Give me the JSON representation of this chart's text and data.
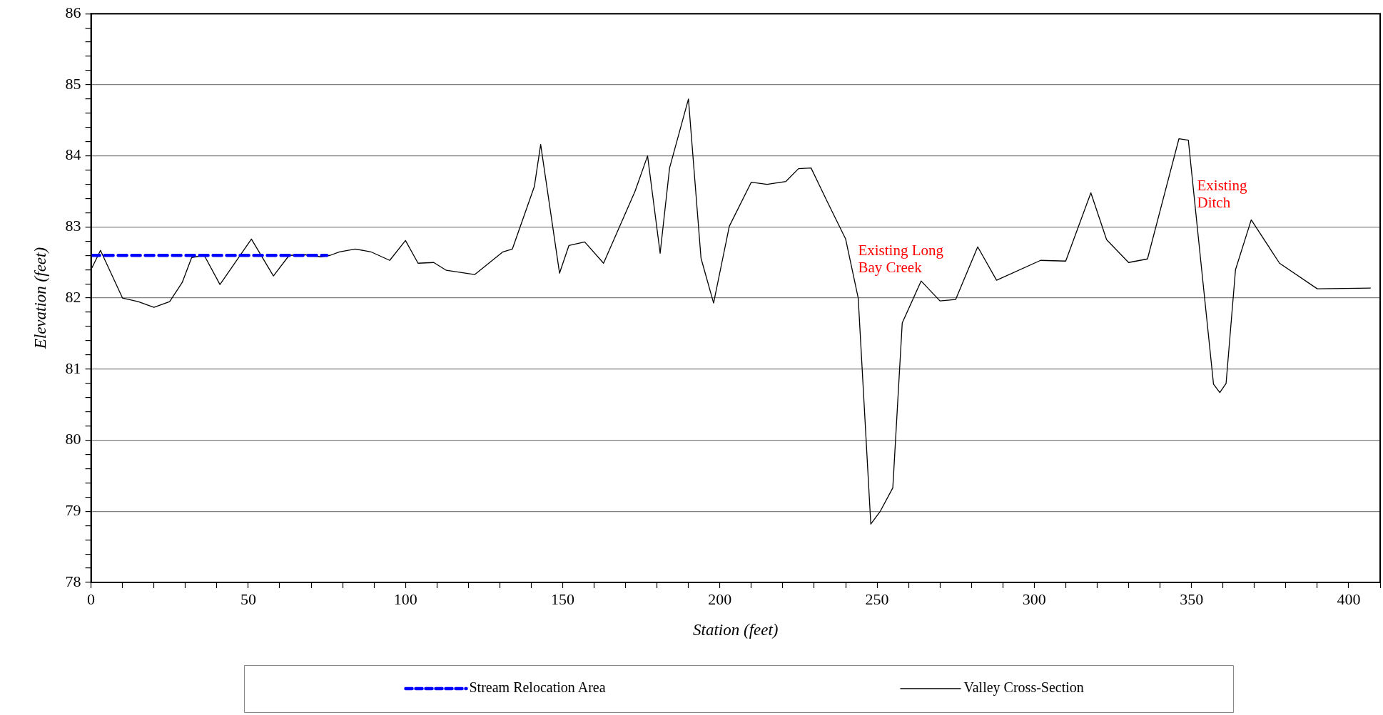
{
  "chart_data": {
    "type": "line",
    "xlabel": "Station (feet)",
    "ylabel": "Elevation (feet)",
    "xlim": [
      0,
      410
    ],
    "xticks": [
      0,
      {
        "value": 10,
        "label": null
      },
      {
        "value": 20,
        "label": null
      },
      {
        "value": 30,
        "label": null
      },
      {
        "value": 40,
        "label": null
      },
      50,
      {
        "value": 60,
        "label": null
      },
      {
        "value": 70,
        "label": null
      },
      {
        "value": 80,
        "label": null
      },
      {
        "value": 90,
        "label": null
      },
      100,
      {
        "value": 110,
        "label": null
      },
      {
        "value": 120,
        "label": null
      },
      {
        "value": 130,
        "label": null
      },
      {
        "value": 140,
        "label": null
      },
      150,
      {
        "value": 160,
        "label": null
      },
      {
        "value": 170,
        "label": null
      },
      {
        "value": 180,
        "label": null
      },
      {
        "value": 190,
        "label": null
      },
      200,
      {
        "value": 210,
        "label": null
      },
      {
        "value": 220,
        "label": null
      },
      {
        "value": 230,
        "label": null
      },
      {
        "value": 240,
        "label": null
      },
      250,
      {
        "value": 260,
        "label": null
      },
      {
        "value": 270,
        "label": null
      },
      {
        "value": 280,
        "label": null
      },
      {
        "value": 290,
        "label": null
      },
      300,
      {
        "value": 310,
        "label": null
      },
      {
        "value": 320,
        "label": null
      },
      {
        "value": 330,
        "label": null
      },
      {
        "value": 340,
        "label": null
      },
      350,
      {
        "value": 360,
        "label": null
      },
      {
        "value": 370,
        "label": null
      },
      {
        "value": 380,
        "label": null
      },
      {
        "value": 390,
        "label": null
      },
      400,
      {
        "value": 410,
        "label": null
      }
    ],
    "ylim": [
      78,
      86
    ],
    "yticks": [
      78,
      {
        "value": 78.2,
        "label": null
      },
      {
        "value": 78.4,
        "label": null
      },
      {
        "value": 78.6,
        "label": null
      },
      {
        "value": 78.8,
        "label": null
      },
      79,
      {
        "value": 79.2,
        "label": null
      },
      {
        "value": 79.4,
        "label": null
      },
      {
        "value": 79.6,
        "label": null
      },
      {
        "value": 79.8,
        "label": null
      },
      80,
      {
        "value": 80.2,
        "label": null
      },
      {
        "value": 80.4,
        "label": null
      },
      {
        "value": 80.6,
        "label": null
      },
      {
        "value": 80.8,
        "label": null
      },
      81,
      {
        "value": 81.2,
        "label": null
      },
      {
        "value": 81.4,
        "label": null
      },
      {
        "value": 81.6,
        "label": null
      },
      {
        "value": 81.8,
        "label": null
      },
      82,
      {
        "value": 82.2,
        "label": null
      },
      {
        "value": 82.4,
        "label": null
      },
      {
        "value": 82.6,
        "label": null
      },
      {
        "value": 82.8,
        "label": null
      },
      83,
      {
        "value": 83.2,
        "label": null
      },
      {
        "value": 83.4,
        "label": null
      },
      {
        "value": 83.6,
        "label": null
      },
      {
        "value": 83.8,
        "label": null
      },
      84,
      {
        "value": 84.2,
        "label": null
      },
      {
        "value": 84.4,
        "label": null
      },
      {
        "value": 84.6,
        "label": null
      },
      {
        "value": 84.8,
        "label": null
      },
      85,
      {
        "value": 85.2,
        "label": null
      },
      {
        "value": 85.4,
        "label": null
      },
      {
        "value": 85.6,
        "label": null
      },
      {
        "value": 85.8,
        "label": null
      },
      86
    ],
    "grid": "y",
    "legend": "bottom",
    "marker": "none",
    "series": [
      {
        "name": "Stream Relocation Area",
        "color": "#0000ff",
        "line_style": "dashed",
        "x": [
          0,
          75
        ],
        "values": [
          82.6,
          82.6
        ]
      },
      {
        "name": "Valley Cross-Section",
        "color": "#000000",
        "line_style": "solid",
        "x": [
          0,
          3,
          10,
          15,
          20,
          25,
          29,
          32,
          36,
          41,
          51,
          58,
          63,
          68,
          73,
          76,
          79,
          84,
          89,
          95,
          100,
          104,
          109,
          113,
          122,
          131,
          134,
          141,
          143,
          149,
          152,
          157,
          163,
          173,
          177,
          181,
          184,
          190,
          194,
          198,
          203,
          210,
          215,
          221,
          225,
          229,
          234,
          240,
          244,
          248,
          251,
          255,
          258,
          264,
          270,
          275,
          282,
          288,
          302,
          310,
          318,
          323,
          330,
          336,
          346,
          349,
          353,
          357,
          359,
          361,
          364,
          369,
          378,
          390,
          407
        ],
        "values": [
          82.4,
          82.67,
          82.0,
          81.95,
          81.87,
          81.95,
          82.22,
          82.57,
          82.6,
          82.19,
          82.83,
          82.31,
          82.6,
          82.61,
          82.58,
          82.6,
          82.65,
          82.69,
          82.65,
          82.53,
          82.81,
          82.49,
          82.5,
          82.39,
          82.33,
          82.65,
          82.69,
          83.57,
          84.16,
          82.35,
          82.74,
          82.79,
          82.49,
          83.5,
          84.0,
          82.63,
          83.83,
          84.8,
          82.56,
          81.93,
          83.01,
          83.63,
          83.6,
          83.64,
          83.82,
          83.83,
          83.37,
          82.83,
          82.0,
          78.82,
          79.0,
          79.33,
          81.65,
          82.24,
          81.96,
          81.98,
          82.72,
          82.25,
          82.53,
          82.52,
          83.48,
          82.82,
          82.5,
          82.55,
          84.24,
          84.22,
          82.5,
          80.79,
          80.67,
          80.8,
          82.4,
          83.1,
          82.49,
          82.13,
          82.14
        ]
      }
    ],
    "annotations": [
      "Existing Long Bay Creek",
      "Existing Ditch"
    ]
  }
}
